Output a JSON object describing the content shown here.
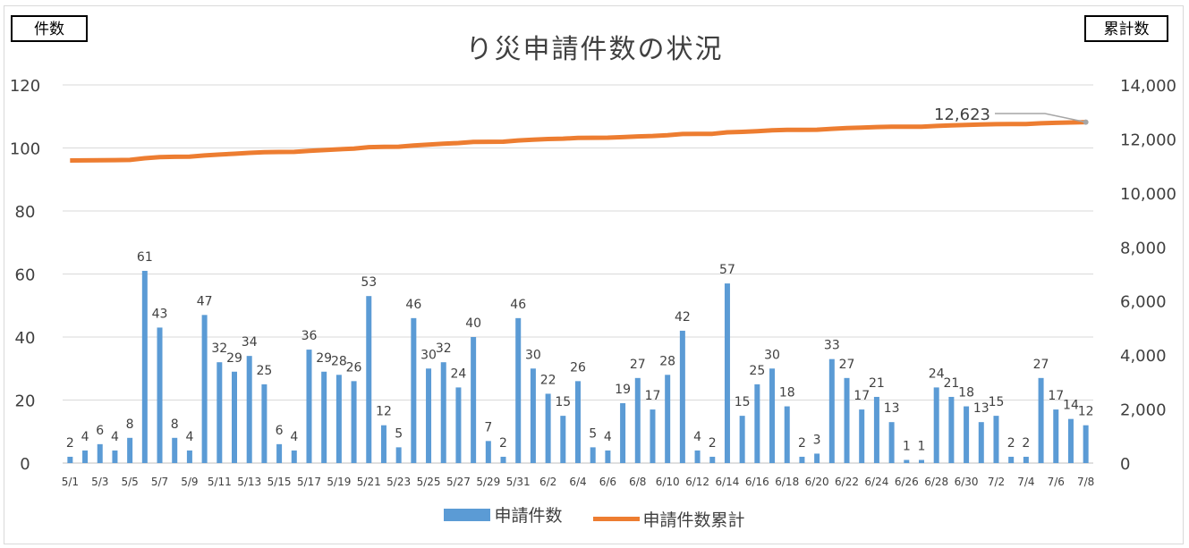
{
  "chart_data": {
    "type": "bar+line",
    "title": "り災申請件数の状況",
    "left_axis_label": "件数",
    "right_axis_label": "累計数",
    "left_ylim": [
      0,
      120
    ],
    "left_ticks": [
      "0",
      "20",
      "40",
      "60",
      "80",
      "100",
      "120"
    ],
    "right_ylim": [
      0,
      14000
    ],
    "right_ticks": [
      "0",
      "2,000",
      "4,000",
      "6,000",
      "8,000",
      "10,000",
      "12,000",
      "14,000"
    ],
    "grid": true,
    "legend_position": "bottom",
    "categories": [
      "5/1",
      "5/2",
      "5/3",
      "5/4",
      "5/5",
      "5/6",
      "5/7",
      "5/8",
      "5/9",
      "5/10",
      "5/11",
      "5/12",
      "5/13",
      "5/14",
      "5/15",
      "5/16",
      "5/17",
      "5/18",
      "5/19",
      "5/20",
      "5/21",
      "5/22",
      "5/23",
      "5/24",
      "5/25",
      "5/26",
      "5/27",
      "5/28",
      "5/29",
      "5/30",
      "5/31",
      "6/1",
      "6/2",
      "6/3",
      "6/4",
      "6/5",
      "6/6",
      "6/7",
      "6/8",
      "6/9",
      "6/10",
      "6/11",
      "6/12",
      "6/13",
      "6/14",
      "6/15",
      "6/16",
      "6/17",
      "6/18",
      "6/19",
      "6/20",
      "6/21",
      "6/22",
      "6/23",
      "6/24",
      "6/25",
      "6/26",
      "6/27",
      "6/28",
      "6/29",
      "6/30",
      "7/1",
      "7/2",
      "7/3",
      "7/4",
      "7/5",
      "7/6",
      "7/7",
      "7/8"
    ],
    "x_tick_labels": [
      "5/1",
      "5/3",
      "5/5",
      "5/7",
      "5/9",
      "5/11",
      "5/13",
      "5/15",
      "5/17",
      "5/19",
      "5/21",
      "5/23",
      "5/25",
      "5/27",
      "5/29",
      "5/31",
      "6/2",
      "6/4",
      "6/6",
      "6/8",
      "6/10",
      "6/12",
      "6/14",
      "6/16",
      "6/18",
      "6/20",
      "6/22",
      "6/24",
      "6/26",
      "6/28",
      "6/30",
      "7/2",
      "7/4",
      "7/6",
      "7/8"
    ],
    "series": [
      {
        "name": "申請件数",
        "type": "bar",
        "axis": "left",
        "color": "#5b9bd5",
        "values": [
          2,
          4,
          6,
          4,
          8,
          61,
          43,
          8,
          4,
          47,
          32,
          29,
          34,
          25,
          6,
          4,
          36,
          29,
          28,
          26,
          53,
          12,
          5,
          46,
          30,
          32,
          24,
          40,
          7,
          2,
          46,
          30,
          22,
          15,
          26,
          5,
          4,
          19,
          27,
          17,
          28,
          42,
          4,
          2,
          57,
          15,
          25,
          30,
          18,
          2,
          3,
          33,
          27,
          17,
          21,
          13,
          1,
          1,
          24,
          21,
          18,
          13,
          15,
          2,
          2,
          27,
          17,
          14,
          12
        ]
      },
      {
        "name": "申請件数累計",
        "type": "line",
        "axis": "right",
        "color": "#ed7d31",
        "start_value": 11200,
        "end_value": 12623,
        "end_label": "12,623"
      }
    ]
  }
}
